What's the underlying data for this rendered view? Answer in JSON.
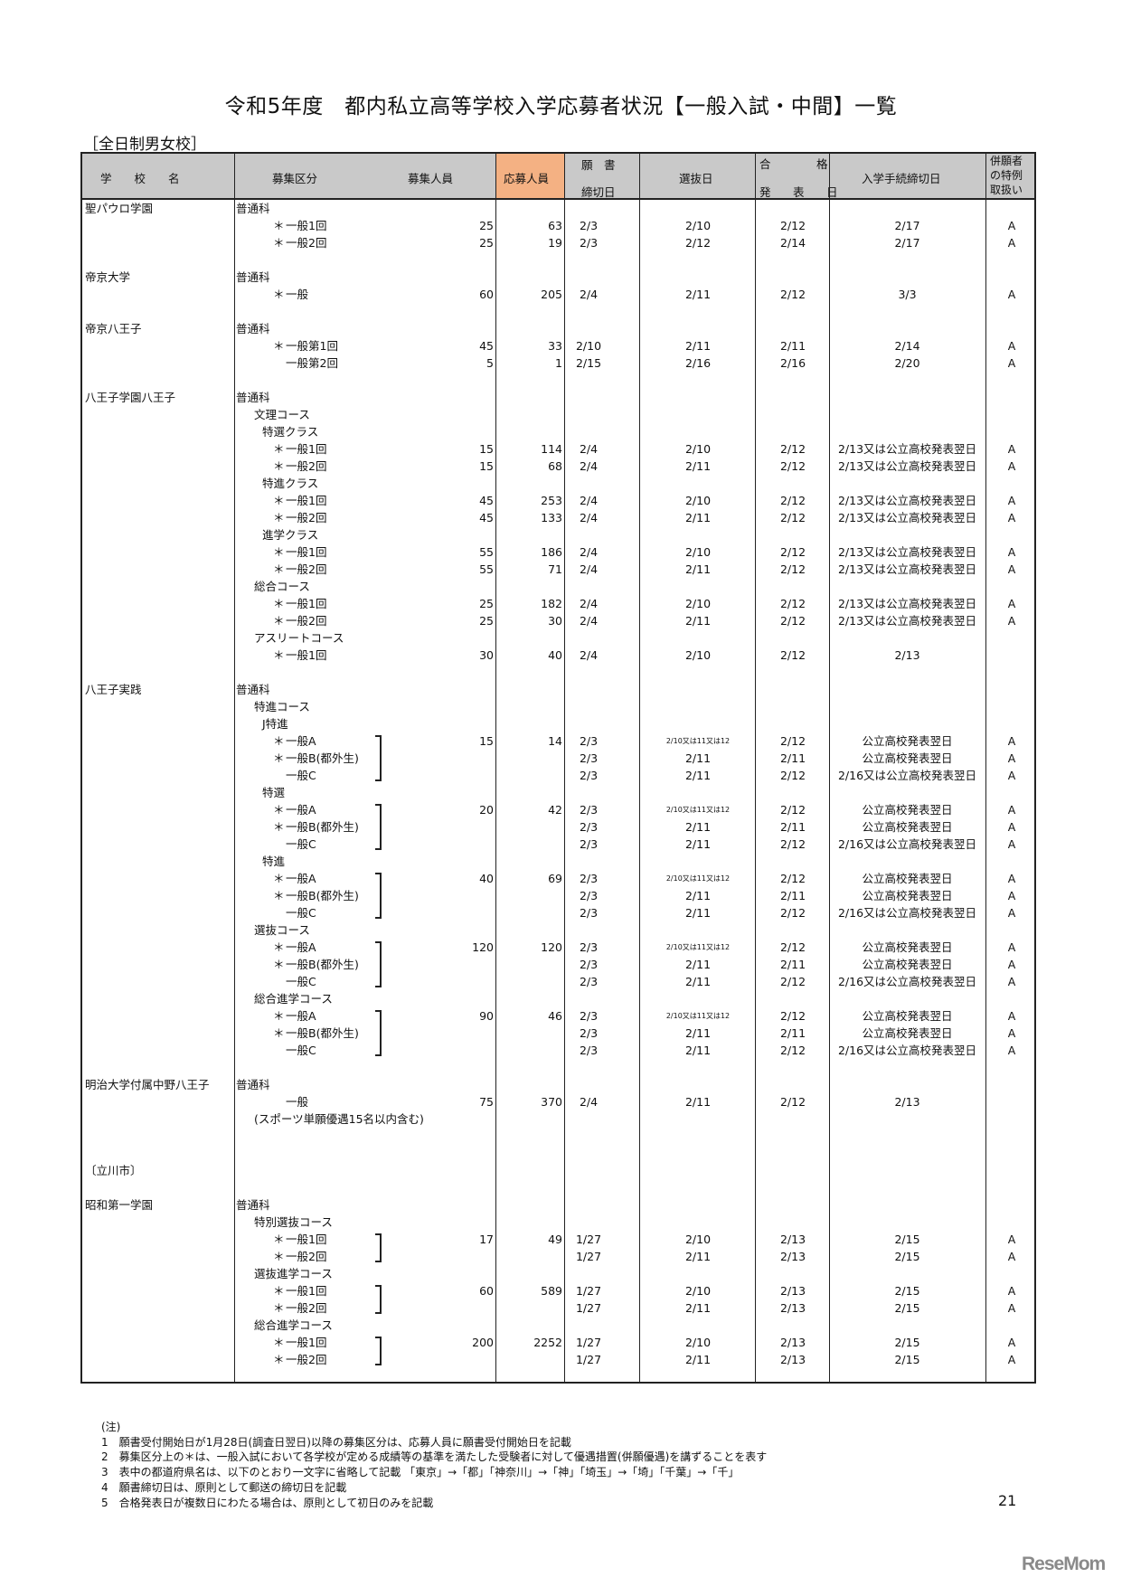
{
  "title": "令和5年度　都内私立高等学校入学応募者状況【一般入試・中間】一覧",
  "subtitle": "［全日制男女校］",
  "colors": {
    "header_bg": "#c9c9c9",
    "applicants_header": "#f4b183"
  },
  "headers": {
    "school": "学　　校　　名",
    "category": "募集区分",
    "capacity": "募集人員",
    "applicants": "応募人員",
    "deadline_top": "願　書",
    "deadline_bottom": "締切日",
    "exam": "選抜日",
    "result_top_left": "合",
    "result_top_right": "格",
    "result_bottom": "発　表　日",
    "procedure": "入学手続締切日",
    "special": "併願者の特例取扱い"
  },
  "rows": [
    {
      "school": "聖パウロ学園",
      "cat": "普通科",
      "lvl": 0
    },
    {
      "star": "＊",
      "cat": "一般1回",
      "lvl": 3,
      "cap": "25",
      "app": "63",
      "dl": "2/3",
      "ex": "2/10",
      "res": "2/12",
      "pr": "2/17",
      "sp": "A"
    },
    {
      "star": "＊",
      "cat": "一般2回",
      "lvl": 3,
      "cap": "25",
      "app": "19",
      "dl": "2/3",
      "ex": "2/12",
      "res": "2/14",
      "pr": "2/17",
      "sp": "A"
    },
    {},
    {
      "school": "帝京大学",
      "cat": "普通科",
      "lvl": 0
    },
    {
      "star": "＊",
      "cat": "一般",
      "lvl": 3,
      "cap": "60",
      "app": "205",
      "dl": "2/4",
      "ex": "2/11",
      "res": "2/12",
      "pr": "3/3",
      "sp": "A"
    },
    {},
    {
      "school": "帝京八王子",
      "cat": "普通科",
      "lvl": 0
    },
    {
      "star": "＊",
      "cat": "一般第1回",
      "lvl": 3,
      "cap": "45",
      "app": "33",
      "dl": "2/10",
      "ex": "2/11",
      "res": "2/11",
      "pr": "2/14",
      "sp": "A"
    },
    {
      "cat": "一般第2回",
      "lvl": 3,
      "cap": "5",
      "app": "1",
      "dl": "2/15",
      "ex": "2/16",
      "res": "2/16",
      "pr": "2/20",
      "sp": "A"
    },
    {},
    {
      "school": "八王子学園八王子",
      "cat": "普通科",
      "lvl": 0
    },
    {
      "cat": "文理コース",
      "lvl": 1
    },
    {
      "cat": "特選クラス",
      "lvl": 2
    },
    {
      "star": "＊",
      "cat": "一般1回",
      "lvl": 3,
      "cap": "15",
      "app": "114",
      "dl": "2/4",
      "ex": "2/10",
      "res": "2/12",
      "pr": "2/13又は公立高校発表翌日",
      "sp": "A"
    },
    {
      "star": "＊",
      "cat": "一般2回",
      "lvl": 3,
      "cap": "15",
      "app": "68",
      "dl": "2/4",
      "ex": "2/11",
      "res": "2/12",
      "pr": "2/13又は公立高校発表翌日",
      "sp": "A"
    },
    {
      "cat": "特進クラス",
      "lvl": 2
    },
    {
      "star": "＊",
      "cat": "一般1回",
      "lvl": 3,
      "cap": "45",
      "app": "253",
      "dl": "2/4",
      "ex": "2/10",
      "res": "2/12",
      "pr": "2/13又は公立高校発表翌日",
      "sp": "A"
    },
    {
      "star": "＊",
      "cat": "一般2回",
      "lvl": 3,
      "cap": "45",
      "app": "133",
      "dl": "2/4",
      "ex": "2/11",
      "res": "2/12",
      "pr": "2/13又は公立高校発表翌日",
      "sp": "A"
    },
    {
      "cat": "進学クラス",
      "lvl": 2
    },
    {
      "star": "＊",
      "cat": "一般1回",
      "lvl": 3,
      "cap": "55",
      "app": "186",
      "dl": "2/4",
      "ex": "2/10",
      "res": "2/12",
      "pr": "2/13又は公立高校発表翌日",
      "sp": "A"
    },
    {
      "star": "＊",
      "cat": "一般2回",
      "lvl": 3,
      "cap": "55",
      "app": "71",
      "dl": "2/4",
      "ex": "2/11",
      "res": "2/12",
      "pr": "2/13又は公立高校発表翌日",
      "sp": "A"
    },
    {
      "cat": "総合コース",
      "lvl": 1
    },
    {
      "star": "＊",
      "cat": "一般1回",
      "lvl": 3,
      "cap": "25",
      "app": "182",
      "dl": "2/4",
      "ex": "2/10",
      "res": "2/12",
      "pr": "2/13又は公立高校発表翌日",
      "sp": "A"
    },
    {
      "star": "＊",
      "cat": "一般2回",
      "lvl": 3,
      "cap": "25",
      "app": "30",
      "dl": "2/4",
      "ex": "2/11",
      "res": "2/12",
      "pr": "2/13又は公立高校発表翌日",
      "sp": "A"
    },
    {
      "cat": "アスリートコース",
      "lvl": 1
    },
    {
      "star": "＊",
      "cat": "一般1回",
      "lvl": 3,
      "cap": "30",
      "app": "40",
      "dl": "2/4",
      "ex": "2/10",
      "res": "2/12",
      "pr": "2/13"
    },
    {},
    {
      "school": "八王子実践",
      "cat": "普通科",
      "lvl": 0
    },
    {
      "cat": "特進コース",
      "lvl": 1
    },
    {
      "cat": "J特進",
      "lvl": 2
    },
    {
      "star": "＊",
      "cat": "一般A",
      "lvl": 3,
      "cap": "15",
      "app": "14",
      "dl": "2/3",
      "ex": "2/10又は11又は12",
      "exs": true,
      "res": "2/12",
      "pr": "公立高校発表翌日",
      "sp": "A",
      "br": 3
    },
    {
      "star": "＊",
      "cat": "一般B(都外生)",
      "lvl": 3,
      "dl": "2/3",
      "ex": "2/11",
      "res": "2/11",
      "pr": "公立高校発表翌日",
      "sp": "A"
    },
    {
      "cat": "一般C",
      "lvl": 3,
      "dl": "2/3",
      "ex": "2/11",
      "res": "2/12",
      "pr": "2/16又は公立高校発表翌日",
      "sp": "A"
    },
    {
      "cat": "特選",
      "lvl": 2
    },
    {
      "star": "＊",
      "cat": "一般A",
      "lvl": 3,
      "cap": "20",
      "app": "42",
      "dl": "2/3",
      "ex": "2/10又は11又は12",
      "exs": true,
      "res": "2/12",
      "pr": "公立高校発表翌日",
      "sp": "A",
      "br": 3
    },
    {
      "star": "＊",
      "cat": "一般B(都外生)",
      "lvl": 3,
      "dl": "2/3",
      "ex": "2/11",
      "res": "2/11",
      "pr": "公立高校発表翌日",
      "sp": "A"
    },
    {
      "cat": "一般C",
      "lvl": 3,
      "dl": "2/3",
      "ex": "2/11",
      "res": "2/12",
      "pr": "2/16又は公立高校発表翌日",
      "sp": "A"
    },
    {
      "cat": "特進",
      "lvl": 2
    },
    {
      "star": "＊",
      "cat": "一般A",
      "lvl": 3,
      "cap": "40",
      "app": "69",
      "dl": "2/3",
      "ex": "2/10又は11又は12",
      "exs": true,
      "res": "2/12",
      "pr": "公立高校発表翌日",
      "sp": "A",
      "br": 3
    },
    {
      "star": "＊",
      "cat": "一般B(都外生)",
      "lvl": 3,
      "dl": "2/3",
      "ex": "2/11",
      "res": "2/11",
      "pr": "公立高校発表翌日",
      "sp": "A"
    },
    {
      "cat": "一般C",
      "lvl": 3,
      "dl": "2/3",
      "ex": "2/11",
      "res": "2/12",
      "pr": "2/16又は公立高校発表翌日",
      "sp": "A"
    },
    {
      "cat": "選抜コース",
      "lvl": 1
    },
    {
      "star": "＊",
      "cat": "一般A",
      "lvl": 3,
      "cap": "120",
      "app": "120",
      "dl": "2/3",
      "ex": "2/10又は11又は12",
      "exs": true,
      "res": "2/12",
      "pr": "公立高校発表翌日",
      "sp": "A",
      "br": 3
    },
    {
      "star": "＊",
      "cat": "一般B(都外生)",
      "lvl": 3,
      "dl": "2/3",
      "ex": "2/11",
      "res": "2/11",
      "pr": "公立高校発表翌日",
      "sp": "A"
    },
    {
      "cat": "一般C",
      "lvl": 3,
      "dl": "2/3",
      "ex": "2/11",
      "res": "2/12",
      "pr": "2/16又は公立高校発表翌日",
      "sp": "A"
    },
    {
      "cat": "総合進学コース",
      "lvl": 1
    },
    {
      "star": "＊",
      "cat": "一般A",
      "lvl": 3,
      "cap": "90",
      "app": "46",
      "dl": "2/3",
      "ex": "2/10又は11又は12",
      "exs": true,
      "res": "2/12",
      "pr": "公立高校発表翌日",
      "sp": "A",
      "br": 3
    },
    {
      "star": "＊",
      "cat": "一般B(都外生)",
      "lvl": 3,
      "dl": "2/3",
      "ex": "2/11",
      "res": "2/11",
      "pr": "公立高校発表翌日",
      "sp": "A"
    },
    {
      "cat": "一般C",
      "lvl": 3,
      "dl": "2/3",
      "ex": "2/11",
      "res": "2/12",
      "pr": "2/16又は公立高校発表翌日",
      "sp": "A"
    },
    {},
    {
      "school": "明治大学付属中野八王子",
      "cat": "普通科",
      "lvl": 0
    },
    {
      "cat": "一般",
      "lvl": 3,
      "cap": "75",
      "app": "370",
      "dl": "2/4",
      "ex": "2/11",
      "res": "2/12",
      "pr": "2/13"
    },
    {
      "cat": "(スポーツ単願優遇15名以内含む)",
      "lvl": 1
    },
    {},
    {},
    {
      "school": "〔立川市〕"
    },
    {},
    {
      "school": "昭和第一学園",
      "cat": "普通科",
      "lvl": 0
    },
    {
      "cat": "特別選抜コース",
      "lvl": 1
    },
    {
      "star": "＊",
      "cat": "一般1回",
      "lvl": 3,
      "cap": "17",
      "app": "49",
      "dl": "1/27",
      "ex": "2/10",
      "res": "2/13",
      "pr": "2/15",
      "sp": "A",
      "br": 2
    },
    {
      "star": "＊",
      "cat": "一般2回",
      "lvl": 3,
      "dl": "1/27",
      "ex": "2/11",
      "res": "2/13",
      "pr": "2/15",
      "sp": "A"
    },
    {
      "cat": "選抜進学コース",
      "lvl": 1
    },
    {
      "star": "＊",
      "cat": "一般1回",
      "lvl": 3,
      "cap": "60",
      "app": "589",
      "dl": "1/27",
      "ex": "2/10",
      "res": "2/13",
      "pr": "2/15",
      "sp": "A",
      "br": 2
    },
    {
      "star": "＊",
      "cat": "一般2回",
      "lvl": 3,
      "dl": "1/27",
      "ex": "2/11",
      "res": "2/13",
      "pr": "2/15",
      "sp": "A"
    },
    {
      "cat": "総合進学コース",
      "lvl": 1
    },
    {
      "star": "＊",
      "cat": "一般1回",
      "lvl": 3,
      "cap": "200",
      "app": "2252",
      "dl": "1/27",
      "ex": "2/10",
      "res": "2/13",
      "pr": "2/15",
      "sp": "A",
      "br": 2
    },
    {
      "star": "＊",
      "cat": "一般2回",
      "lvl": 3,
      "dl": "1/27",
      "ex": "2/11",
      "res": "2/13",
      "pr": "2/15",
      "sp": "A"
    }
  ],
  "notes": {
    "heading": "(注)",
    "items": [
      "1　願書受付開始日が1月28日(調査日翌日)以降の募集区分は、応募人員に願書受付開始日を記載",
      "2　募集区分上の＊は、一般入試において各学校が定める成績等の基準を満たした受験者に対して優遇措置(併願優遇)を講ずることを表す",
      "3　表中の都道府県名は、以下のとおり一文字に省略して記載 「東京」→「都」「神奈川」→「神」「埼玉」→「埼」「千葉」→「千」",
      "4　願書締切日は、原則として郵送の締切日を記載",
      "5　合格発表日が複数日にわたる場合は、原則として初日のみを記載"
    ]
  },
  "page_number": "21",
  "logo": "ReseMom"
}
